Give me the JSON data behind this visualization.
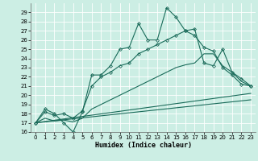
{
  "xlabel": "Humidex (Indice chaleur)",
  "bg_color": "#cceee4",
  "grid_color": "#ffffff",
  "line_color": "#1a6b5a",
  "xlim": [
    -0.5,
    23.5
  ],
  "ylim": [
    16,
    30
  ],
  "yticks": [
    16,
    17,
    18,
    19,
    20,
    21,
    22,
    23,
    24,
    25,
    26,
    27,
    28,
    29
  ],
  "xticks": [
    0,
    1,
    2,
    3,
    4,
    5,
    6,
    7,
    8,
    9,
    10,
    11,
    12,
    13,
    14,
    15,
    16,
    17,
    18,
    19,
    20,
    21,
    22,
    23
  ],
  "line1": {
    "x": [
      0,
      1,
      2,
      3,
      4,
      5,
      6,
      7,
      8,
      9,
      10,
      11,
      12,
      13,
      14,
      15,
      16,
      17,
      18,
      19,
      20,
      21,
      22,
      23
    ],
    "y": [
      17,
      18.5,
      18,
      17,
      16,
      18.2,
      22.2,
      22.2,
      23.2,
      25,
      25.2,
      27.8,
      26,
      26,
      29.5,
      28.5,
      27,
      26.5,
      25.2,
      24.8,
      23,
      22.2,
      21.2,
      21
    ],
    "marker": true
  },
  "line2": {
    "x": [
      0,
      1,
      2,
      3,
      4,
      5,
      6,
      7,
      8,
      9,
      10,
      11,
      12,
      13,
      14,
      15,
      16,
      17,
      18,
      19,
      20,
      21,
      22,
      23
    ],
    "y": [
      17,
      18.2,
      17.8,
      18,
      17.5,
      18.3,
      21,
      22,
      22.5,
      23.2,
      23.5,
      24.5,
      25,
      25.5,
      26,
      26.5,
      27,
      27.2,
      23.5,
      23.2,
      25,
      22.5,
      21.8,
      21
    ],
    "marker": true
  },
  "line3": {
    "x": [
      0,
      1,
      2,
      3,
      4,
      5,
      6,
      7,
      8,
      9,
      10,
      11,
      12,
      13,
      14,
      15,
      16,
      17,
      18,
      19,
      20,
      21,
      22,
      23
    ],
    "y": [
      17,
      17.5,
      17.2,
      17.3,
      17.1,
      17.5,
      18.5,
      19,
      19.5,
      20,
      20.5,
      21,
      21.5,
      22,
      22.5,
      23,
      23.3,
      23.5,
      24.5,
      24.5,
      23.2,
      22.5,
      21.5,
      21
    ],
    "marker": false
  },
  "line4": {
    "x": [
      0,
      23
    ],
    "y": [
      17,
      20.2
    ],
    "marker": false
  },
  "line5": {
    "x": [
      0,
      23
    ],
    "y": [
      17,
      19.5
    ],
    "marker": false
  }
}
